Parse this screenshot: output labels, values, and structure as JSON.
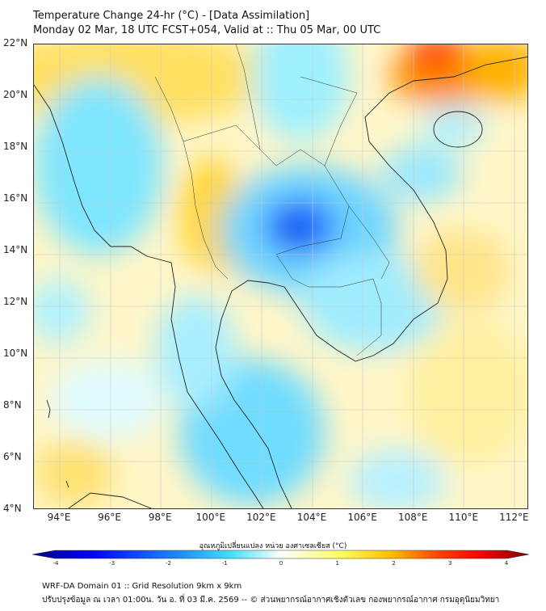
{
  "header": {
    "title": "Temperature Change 24-hr (°C) - [Data Assimilation]",
    "subtitle": "Monday 02 Mar, 18 UTC FCST+054, Valid at :: Thu 05 Mar, 00 UTC"
  },
  "map": {
    "lat_labels": [
      "22°N",
      "20°N",
      "18°N",
      "16°N",
      "14°N",
      "12°N",
      "10°N",
      "8°N",
      "6°N",
      "4°N"
    ],
    "lon_labels": [
      "94°E",
      "96°E",
      "98°E",
      "100°E",
      "102°E",
      "104°E",
      "106°E",
      "108°E",
      "110°E",
      "112°E"
    ]
  },
  "colorbar": {
    "label": "อุณหภูมิเปลี่ยนแปลง หน่วย องศาเซลเซียส (°C)",
    "ticks": [
      "-4",
      "-3",
      "-2",
      "-1",
      "0",
      "1",
      "2",
      "3",
      "4"
    ],
    "range": [
      -4,
      4
    ],
    "colors": [
      "#00007f",
      "#0000ff",
      "#1e90ff",
      "#40e0ff",
      "#ffffff",
      "#ffff60",
      "#ffc000",
      "#ff4000",
      "#ff0000",
      "#7f0000"
    ]
  },
  "footer": {
    "line1": "WRF-DA Domain 01 :: Grid Resolution 9km x 9km",
    "line2": "ปรับปรุงข้อมูล ณ เวลา 01:00น. วัน อ. ที่ 03 มี.ค. 2569 -- © ส่วนพยากรณ์อากาศเชิงตัวเลข กองพยากรณ์อากาศ กรมอุตุนิยมวิทยา"
  }
}
